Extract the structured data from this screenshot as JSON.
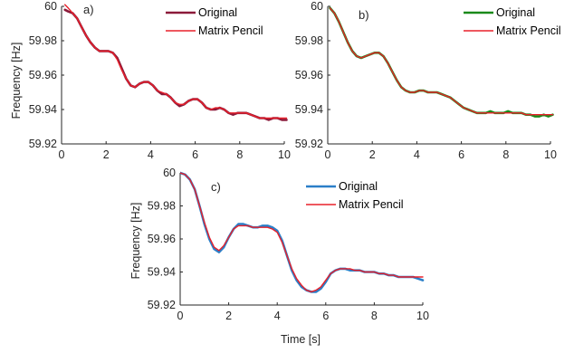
{
  "figure": {
    "ylabel": "Frequency [Hz]",
    "xlabel": "Time [s]"
  },
  "chart_data": [
    {
      "type": "line",
      "panel_label": "a)",
      "xlim": [
        0,
        10
      ],
      "ylim": [
        59.92,
        60.0
      ],
      "xticks": [
        0,
        2,
        4,
        6,
        8,
        10
      ],
      "yticks": [
        59.92,
        59.94,
        59.96,
        59.98,
        60.0
      ],
      "ytick_labels": [
        "59.92",
        "59.94",
        "59.96",
        "59.98",
        "60"
      ],
      "xtick_labels": [
        "0",
        "2",
        "4",
        "6",
        "8",
        "10"
      ],
      "ylabel": "Frequency [Hz]",
      "xlabel": "",
      "grid": false,
      "legend": "top-right",
      "series": [
        {
          "name": "Original",
          "color": "#8b1a3a",
          "x": [
            0.15,
            0.3,
            0.5,
            0.7,
            0.9,
            1.1,
            1.3,
            1.5,
            1.7,
            1.9,
            2.1,
            2.3,
            2.5,
            2.7,
            2.9,
            3.1,
            3.3,
            3.5,
            3.7,
            3.9,
            4.1,
            4.3,
            4.5,
            4.7,
            4.9,
            5.1,
            5.3,
            5.5,
            5.7,
            5.9,
            6.1,
            6.3,
            6.5,
            6.7,
            6.9,
            7.1,
            7.3,
            7.5,
            7.7,
            7.9,
            8.1,
            8.3,
            8.5,
            8.7,
            8.9,
            9.1,
            9.3,
            9.5,
            9.7,
            9.9,
            10.1
          ],
          "y": [
            59.998,
            59.997,
            59.996,
            59.993,
            59.988,
            59.983,
            59.979,
            59.976,
            59.974,
            59.974,
            59.974,
            59.973,
            59.97,
            59.964,
            59.958,
            59.954,
            59.953,
            59.955,
            59.956,
            59.956,
            59.954,
            59.951,
            59.949,
            59.949,
            59.947,
            59.944,
            59.942,
            59.943,
            59.945,
            59.946,
            59.946,
            59.944,
            59.941,
            59.94,
            59.94,
            59.941,
            59.94,
            59.938,
            59.937,
            59.938,
            59.938,
            59.938,
            59.937,
            59.936,
            59.935,
            59.935,
            59.934,
            59.935,
            59.935,
            59.934,
            59.934
          ]
        },
        {
          "name": "Matrix Pencil",
          "color": "#e8202a",
          "x": [
            0.15,
            0.3,
            0.5,
            0.7,
            0.9,
            1.1,
            1.3,
            1.5,
            1.7,
            1.9,
            2.1,
            2.3,
            2.5,
            2.7,
            2.9,
            3.1,
            3.3,
            3.5,
            3.7,
            3.9,
            4.1,
            4.3,
            4.5,
            4.7,
            4.9,
            5.1,
            5.3,
            5.5,
            5.7,
            5.9,
            6.1,
            6.3,
            6.5,
            6.7,
            6.9,
            7.1,
            7.3,
            7.5,
            7.7,
            7.9,
            8.1,
            8.3,
            8.5,
            8.7,
            8.9,
            9.1,
            9.3,
            9.5,
            9.7,
            9.9,
            10.1
          ],
          "y": [
            60.001,
            59.999,
            59.996,
            59.993,
            59.988,
            59.983,
            59.979,
            59.976,
            59.974,
            59.974,
            59.974,
            59.973,
            59.969,
            59.963,
            59.958,
            59.954,
            59.953,
            59.955,
            59.956,
            59.956,
            59.954,
            59.951,
            59.95,
            59.949,
            59.947,
            59.944,
            59.943,
            59.943,
            59.945,
            59.946,
            59.946,
            59.944,
            59.941,
            59.94,
            59.941,
            59.941,
            59.94,
            59.938,
            59.938,
            59.938,
            59.938,
            59.938,
            59.937,
            59.936,
            59.935,
            59.935,
            59.935,
            59.935,
            59.935,
            59.935,
            59.935
          ]
        }
      ]
    },
    {
      "type": "line",
      "panel_label": "b)",
      "xlim": [
        0,
        10
      ],
      "ylim": [
        59.92,
        60.0
      ],
      "xticks": [
        0,
        2,
        4,
        6,
        8,
        10
      ],
      "yticks": [
        59.92,
        59.94,
        59.96,
        59.98,
        60.0
      ],
      "ytick_labels": [
        "59.92",
        "59.94",
        "59.96",
        "59.98",
        "60"
      ],
      "xtick_labels": [
        "0",
        "2",
        "4",
        "6",
        "8",
        "10"
      ],
      "ylabel": "",
      "xlabel": "",
      "grid": false,
      "legend": "top-right",
      "series": [
        {
          "name": "Original",
          "color": "#1a8a1a",
          "x": [
            0.1,
            0.3,
            0.5,
            0.7,
            0.9,
            1.1,
            1.3,
            1.5,
            1.7,
            1.9,
            2.1,
            2.3,
            2.5,
            2.7,
            2.9,
            3.1,
            3.3,
            3.5,
            3.7,
            3.9,
            4.1,
            4.3,
            4.5,
            4.7,
            4.9,
            5.1,
            5.3,
            5.5,
            5.7,
            5.9,
            6.1,
            6.3,
            6.5,
            6.7,
            6.9,
            7.1,
            7.3,
            7.5,
            7.7,
            7.9,
            8.1,
            8.3,
            8.5,
            8.7,
            8.9,
            9.1,
            9.3,
            9.5,
            9.7,
            9.9,
            10.1
          ],
          "y": [
            59.999,
            59.996,
            59.991,
            59.985,
            59.979,
            59.974,
            59.971,
            59.97,
            59.971,
            59.972,
            59.973,
            59.973,
            59.971,
            59.967,
            59.962,
            59.957,
            59.953,
            59.951,
            59.95,
            59.95,
            59.951,
            59.951,
            59.95,
            59.95,
            59.95,
            59.949,
            59.948,
            59.947,
            59.945,
            59.943,
            59.941,
            59.94,
            59.939,
            59.938,
            59.938,
            59.938,
            59.939,
            59.938,
            59.938,
            59.938,
            59.939,
            59.938,
            59.938,
            59.938,
            59.937,
            59.937,
            59.936,
            59.936,
            59.937,
            59.936,
            59.937
          ]
        },
        {
          "name": "Matrix Pencil",
          "color": "#e8202a",
          "x": [
            0.1,
            0.3,
            0.5,
            0.7,
            0.9,
            1.1,
            1.3,
            1.5,
            1.7,
            1.9,
            2.1,
            2.3,
            2.5,
            2.7,
            2.9,
            3.1,
            3.3,
            3.5,
            3.7,
            3.9,
            4.1,
            4.3,
            4.5,
            4.7,
            4.9,
            5.1,
            5.3,
            5.5,
            5.7,
            5.9,
            6.1,
            6.3,
            6.5,
            6.7,
            6.9,
            7.1,
            7.3,
            7.5,
            7.7,
            7.9,
            8.1,
            8.3,
            8.5,
            8.7,
            8.9,
            9.1,
            9.3,
            9.5,
            9.7,
            9.9,
            10.1
          ],
          "y": [
            59.999,
            59.996,
            59.991,
            59.985,
            59.979,
            59.974,
            59.971,
            59.97,
            59.971,
            59.972,
            59.973,
            59.973,
            59.971,
            59.967,
            59.962,
            59.957,
            59.953,
            59.951,
            59.95,
            59.95,
            59.951,
            59.951,
            59.95,
            59.95,
            59.95,
            59.949,
            59.948,
            59.947,
            59.945,
            59.943,
            59.941,
            59.94,
            59.939,
            59.938,
            59.938,
            59.938,
            59.938,
            59.938,
            59.938,
            59.938,
            59.938,
            59.938,
            59.938,
            59.938,
            59.937,
            59.937,
            59.937,
            59.937,
            59.937,
            59.937,
            59.937
          ]
        }
      ]
    },
    {
      "type": "line",
      "panel_label": "c)",
      "xlim": [
        0,
        10
      ],
      "ylim": [
        59.92,
        60.0
      ],
      "xticks": [
        0,
        2,
        4,
        6,
        8,
        10
      ],
      "yticks": [
        59.92,
        59.94,
        59.96,
        59.98,
        60.0
      ],
      "ytick_labels": [
        "59.92",
        "59.94",
        "59.96",
        "59.98",
        "60"
      ],
      "xtick_labels": [
        "0",
        "2",
        "4",
        "6",
        "8",
        "10"
      ],
      "ylabel": "Frequency [Hz]",
      "xlabel": "Time [s]",
      "grid": false,
      "legend": "top-right",
      "series": [
        {
          "name": "Original",
          "color": "#2b7fc8",
          "x": [
            0.0,
            0.2,
            0.4,
            0.6,
            0.8,
            1.0,
            1.2,
            1.4,
            1.6,
            1.8,
            2.0,
            2.2,
            2.4,
            2.6,
            2.8,
            3.0,
            3.2,
            3.4,
            3.6,
            3.8,
            4.0,
            4.2,
            4.4,
            4.6,
            4.8,
            5.0,
            5.2,
            5.4,
            5.6,
            5.8,
            6.0,
            6.2,
            6.4,
            6.6,
            6.8,
            7.0,
            7.2,
            7.4,
            7.6,
            7.8,
            8.0,
            8.2,
            8.4,
            8.6,
            8.8,
            9.0,
            9.2,
            9.4,
            9.6,
            9.8,
            10.0
          ],
          "y": [
            60.0,
            59.999,
            59.996,
            59.99,
            59.98,
            59.969,
            59.96,
            59.954,
            59.952,
            59.955,
            59.961,
            59.966,
            59.969,
            59.969,
            59.968,
            59.967,
            59.967,
            59.968,
            59.968,
            59.967,
            59.965,
            59.959,
            59.95,
            59.941,
            59.935,
            59.931,
            59.929,
            59.928,
            59.928,
            59.93,
            59.934,
            59.939,
            59.941,
            59.942,
            59.942,
            59.941,
            59.941,
            59.941,
            59.94,
            59.94,
            59.94,
            59.939,
            59.939,
            59.938,
            59.938,
            59.937,
            59.937,
            59.937,
            59.937,
            59.936,
            59.935
          ]
        },
        {
          "name": "Matrix Pencil",
          "color": "#e8202a",
          "x": [
            0.0,
            0.2,
            0.4,
            0.6,
            0.8,
            1.0,
            1.2,
            1.4,
            1.6,
            1.8,
            2.0,
            2.2,
            2.4,
            2.6,
            2.8,
            3.0,
            3.2,
            3.4,
            3.6,
            3.8,
            4.0,
            4.2,
            4.4,
            4.6,
            4.8,
            5.0,
            5.2,
            5.4,
            5.6,
            5.8,
            6.0,
            6.2,
            6.4,
            6.6,
            6.8,
            7.0,
            7.2,
            7.4,
            7.6,
            7.8,
            8.0,
            8.2,
            8.4,
            8.6,
            8.8,
            9.0,
            9.2,
            9.4,
            9.6,
            9.8,
            10.0
          ],
          "y": [
            60.0,
            59.999,
            59.996,
            59.99,
            59.98,
            59.97,
            59.961,
            59.955,
            59.953,
            59.956,
            59.961,
            59.966,
            59.968,
            59.968,
            59.968,
            59.967,
            59.967,
            59.967,
            59.967,
            59.966,
            59.964,
            59.958,
            59.95,
            59.942,
            59.936,
            59.932,
            59.929,
            59.928,
            59.929,
            59.931,
            59.935,
            59.939,
            59.941,
            59.942,
            59.942,
            59.942,
            59.941,
            59.941,
            59.94,
            59.94,
            59.94,
            59.939,
            59.939,
            59.938,
            59.938,
            59.937,
            59.937,
            59.937,
            59.937,
            59.937,
            59.937
          ]
        }
      ]
    }
  ]
}
